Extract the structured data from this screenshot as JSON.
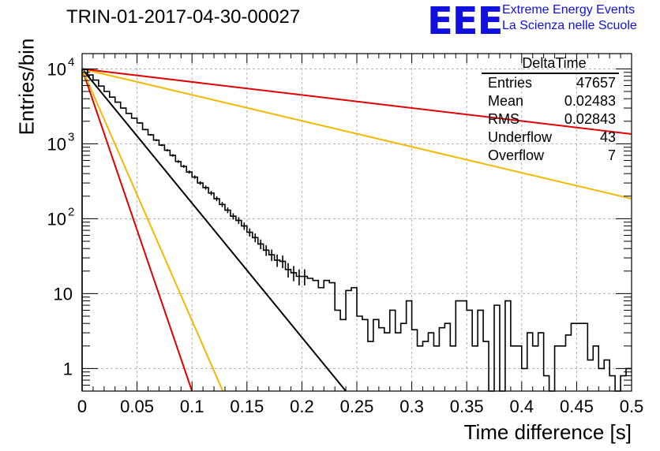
{
  "title": "TRIN-01-2017-04-30-00027",
  "logo": {
    "mark": "EEE",
    "line1": "Extreme Energy Events",
    "line2": "La Scienza nelle Scuole",
    "color": "#1010e0"
  },
  "stats": {
    "name": "DeltaTime",
    "rows": [
      {
        "label": "Entries",
        "value": "47657"
      },
      {
        "label": "Mean",
        "value": "0.02483"
      },
      {
        "label": "RMS",
        "value": "0.02843"
      },
      {
        "label": "Underflow",
        "value": "43"
      },
      {
        "label": "Overflow",
        "value": "7"
      }
    ]
  },
  "chart_data": {
    "type": "line",
    "title": "TRIN-01-2017-04-30-00027",
    "xlabel": "Time difference [s]",
    "ylabel": "Entries/bin",
    "xlim": [
      0,
      0.5
    ],
    "ylim": [
      0.5,
      16000
    ],
    "yscale": "log",
    "grid": true,
    "x_ticks": [
      "0",
      "0.05",
      "0.1",
      "0.15",
      "0.2",
      "0.25",
      "0.3",
      "0.35",
      "0.4",
      "0.45",
      "0.5"
    ],
    "y_ticks": [
      {
        "value": 10000,
        "base": "10",
        "exp": "4"
      },
      {
        "value": 1000,
        "base": "10",
        "exp": "3"
      },
      {
        "value": 100,
        "base": "10",
        "exp": "2"
      },
      {
        "value": 10,
        "base": "10",
        "exp": ""
      },
      {
        "value": 1,
        "base": "1",
        "exp": ""
      }
    ],
    "histogram": {
      "bin_width": 0.005,
      "color": "#000000",
      "values": [
        9800,
        8300,
        7100,
        5900,
        5000,
        4200,
        3600,
        3000,
        2550,
        2200,
        1900,
        1550,
        1320,
        1120,
        960,
        820,
        700,
        580,
        500,
        420,
        360,
        300,
        260,
        220,
        185,
        155,
        130,
        108,
        95,
        80,
        66,
        56,
        46,
        38,
        33,
        28,
        27,
        21,
        19,
        17,
        17,
        16,
        15,
        12,
        15,
        14,
        6,
        4.5,
        11,
        12,
        5,
        4.5,
        2.3,
        4.5,
        3.5,
        3,
        6,
        3,
        4,
        8,
        3.3,
        2,
        2.3,
        3,
        2,
        3.5,
        4,
        2,
        8,
        8,
        6,
        2,
        6,
        2.3,
        0.5,
        7,
        0.5,
        8,
        2,
        2,
        1,
        3,
        2,
        3,
        0.8,
        0.5,
        2,
        2,
        2.8,
        4,
        4,
        4,
        1.3,
        2,
        1,
        1.3,
        0.8,
        0.5,
        0.8,
        1
      ]
    },
    "series": [
      {
        "color": "#000000",
        "x0": 0,
        "y0": 10000,
        "x1": 0.24,
        "y1": 0.5
      },
      {
        "color": "#e00000",
        "x0": 0,
        "y0": 10000,
        "x1": 0.1,
        "y1": 0.5
      },
      {
        "color": "#f5b800",
        "x0": 0,
        "y0": 10000,
        "x1": 0.128,
        "y1": 0.5
      },
      {
        "color": "#f5b800",
        "x0": 0,
        "y0": 10000,
        "x1": 0.5,
        "y1": 185
      },
      {
        "color": "#e00000",
        "x0": 0,
        "y0": 10000,
        "x1": 0.5,
        "y1": 1350
      }
    ]
  }
}
